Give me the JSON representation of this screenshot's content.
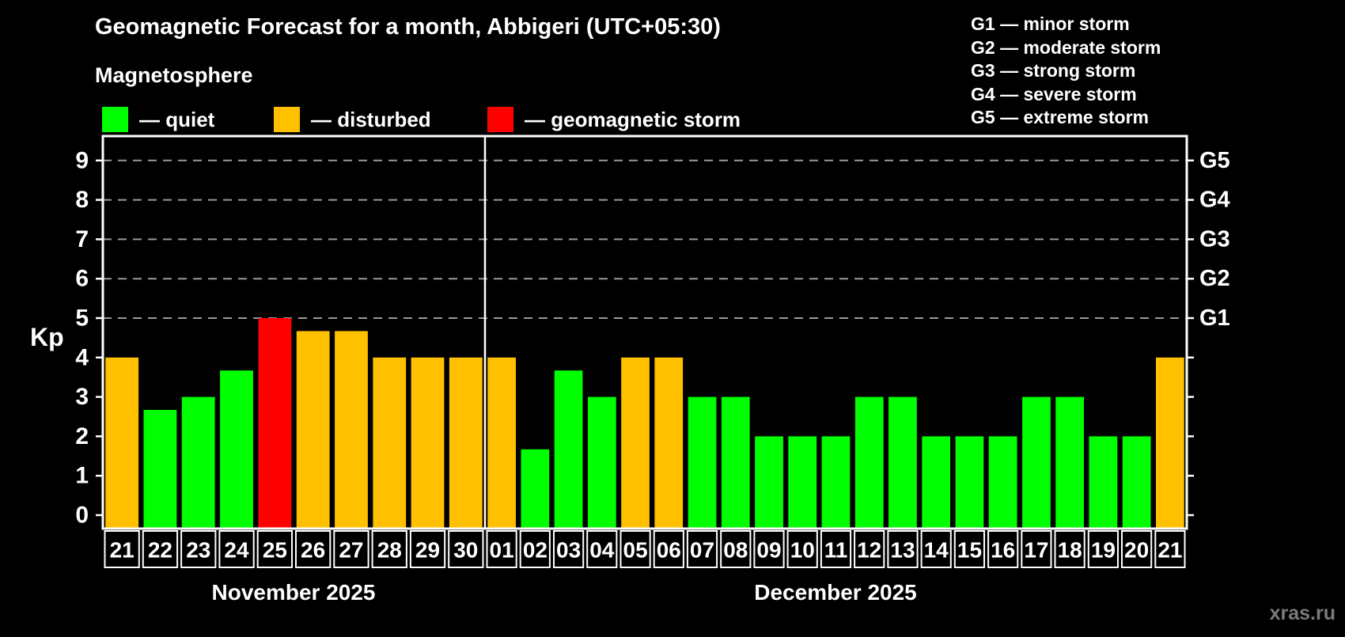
{
  "title": "Geomagnetic Forecast for a month, Abbigeri (UTC+05:30)",
  "subtitle": "Magnetosphere",
  "legend": {
    "items": [
      {
        "key": "quiet",
        "label": "— quiet",
        "color": "#00ff00"
      },
      {
        "key": "disturbed",
        "label": "— disturbed",
        "color": "#ffc000"
      },
      {
        "key": "storm",
        "label": "— geomagnetic storm",
        "color": "#ff0000"
      }
    ]
  },
  "g_legend": {
    "items": [
      {
        "label": "G1 — minor storm"
      },
      {
        "label": "G2 — moderate storm"
      },
      {
        "label": "G3 — strong storm"
      },
      {
        "label": "G4 — severe storm"
      },
      {
        "label": "G5 — extreme storm"
      }
    ]
  },
  "chart_data": {
    "type": "bar",
    "ylabel": "Kp",
    "ylim": [
      0,
      9
    ],
    "yticks": [
      0,
      1,
      2,
      3,
      4,
      5,
      6,
      7,
      8,
      9
    ],
    "gridlines_kp": [
      5,
      6,
      7,
      8,
      9
    ],
    "grid": "dashed horizontal at G-storm levels only",
    "legend_position": "top",
    "right_axis_labels": [
      {
        "label": "G1",
        "kp": 5
      },
      {
        "label": "G2",
        "kp": 6
      },
      {
        "label": "G3",
        "kp": 7
      },
      {
        "label": "G4",
        "kp": 8
      },
      {
        "label": "G5",
        "kp": 9
      }
    ],
    "status_colors": {
      "quiet": "#00ff00",
      "disturbed": "#ffc000",
      "storm": "#ff0000"
    },
    "months": [
      {
        "label": "November 2025",
        "days": [
          "21",
          "22",
          "23",
          "24",
          "25",
          "26",
          "27",
          "28",
          "29",
          "30"
        ],
        "values": [
          4,
          2.67,
          3,
          3.67,
          5,
          4.67,
          4.67,
          4,
          4,
          4
        ],
        "statuses": [
          "disturbed",
          "quiet",
          "quiet",
          "quiet",
          "storm",
          "disturbed",
          "disturbed",
          "disturbed",
          "disturbed",
          "disturbed"
        ]
      },
      {
        "label": "December 2025",
        "days": [
          "01",
          "02",
          "03",
          "04",
          "05",
          "06",
          "07",
          "08",
          "09",
          "10",
          "11",
          "12",
          "13",
          "14",
          "15",
          "16",
          "17",
          "18",
          "19",
          "20",
          "21"
        ],
        "values": [
          4,
          1.67,
          3.67,
          3,
          4,
          4,
          3,
          3,
          2,
          2,
          2,
          3,
          3,
          2,
          2,
          2,
          3,
          3,
          2,
          2,
          4
        ],
        "statuses": [
          "disturbed",
          "quiet",
          "quiet",
          "quiet",
          "disturbed",
          "disturbed",
          "quiet",
          "quiet",
          "quiet",
          "quiet",
          "quiet",
          "quiet",
          "quiet",
          "quiet",
          "quiet",
          "quiet",
          "quiet",
          "quiet",
          "quiet",
          "quiet",
          "disturbed"
        ]
      }
    ]
  },
  "watermark": "xras.ru"
}
